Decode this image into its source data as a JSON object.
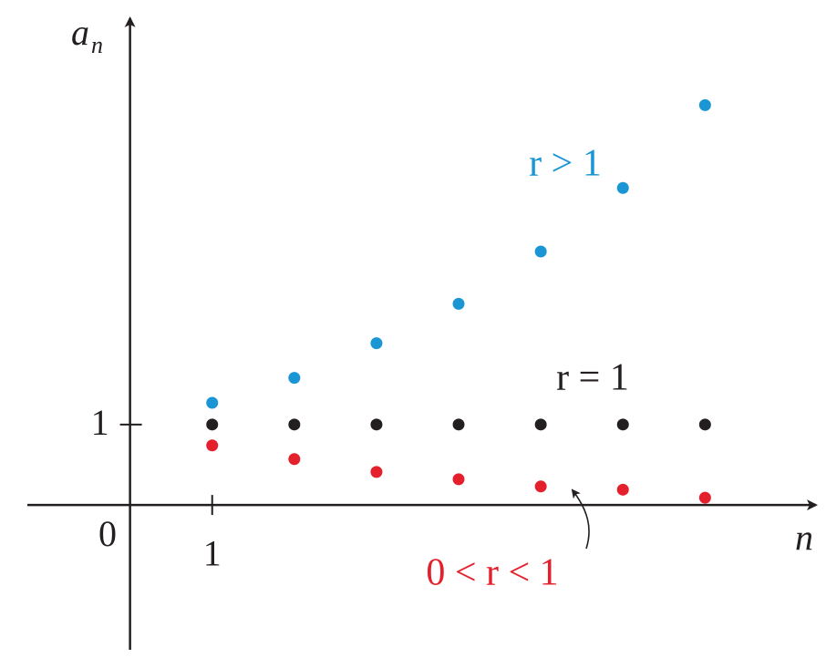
{
  "chart_data": {
    "type": "scatter",
    "ylabel": "a",
    "ylabel_subscript": "n",
    "xlabel": "n",
    "origin_label": 0,
    "x": [
      1,
      2,
      3,
      4,
      5,
      6,
      7
    ],
    "series": [
      {
        "name": "r > 1",
        "color": "#1a96d4",
        "values": [
          1.27,
          1.58,
          2.01,
          2.5,
          3.15,
          3.94,
          4.97
        ]
      },
      {
        "name": "r = 1",
        "color": "#231f20",
        "values": [
          1,
          1,
          1,
          1,
          1,
          1,
          1
        ]
      },
      {
        "name": "0 < r < 1",
        "color": "#e3202b",
        "values": [
          0.74,
          0.57,
          0.41,
          0.32,
          0.23,
          0.19,
          0.09
        ]
      }
    ],
    "xlim": [
      -1.25,
      8.35
    ],
    "ylim": [
      -1.8,
      6.05
    ],
    "xticks": [
      1
    ],
    "yticks": [
      1
    ],
    "grid": false
  }
}
